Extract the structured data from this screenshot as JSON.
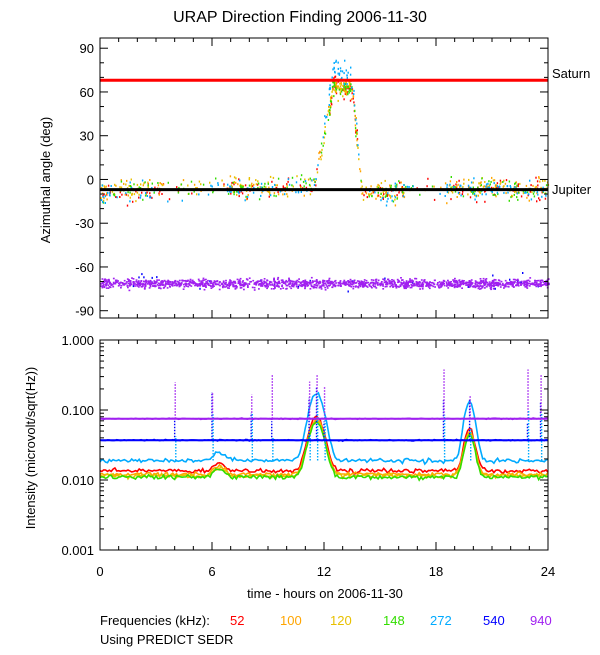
{
  "chart_data": [
    {
      "type": "scatter",
      "title": "URAP Direction Finding  2006-11-30",
      "ylabel": "Azimuthal angle (deg)",
      "xlim": [
        0,
        24
      ],
      "ylim": [
        -95,
        97
      ],
      "y_ticks": [
        "90",
        "60",
        "30",
        "0",
        "-30",
        "-60",
        "-90"
      ],
      "y_tick_values": [
        90,
        60,
        30,
        0,
        -30,
        -60,
        -90
      ],
      "reference_lines": [
        {
          "label": "Saturn",
          "value": 68,
          "color": "#ff0000"
        },
        {
          "label": "Jupiter",
          "value": -7,
          "color": "#000000"
        }
      ],
      "series": [
        {
          "name": "52",
          "color": "#ff0000",
          "profile": [
            [
              0,
              -10
            ],
            [
              3,
              -8
            ],
            [
              7,
              -6
            ],
            [
              10,
              -6
            ],
            [
              11.5,
              -2
            ],
            [
              12.5,
              66
            ],
            [
              13.5,
              60
            ],
            [
              14,
              -8
            ],
            [
              18,
              -6
            ],
            [
              24,
              -6
            ]
          ]
        },
        {
          "name": "100",
          "color": "#ffa500",
          "profile": [
            [
              0,
              -8
            ],
            [
              3,
              -6
            ],
            [
              7,
              -4
            ],
            [
              10,
              -5
            ],
            [
              11.5,
              -2
            ],
            [
              12.5,
              65
            ],
            [
              13.5,
              62
            ],
            [
              14,
              -8
            ],
            [
              18,
              -6
            ],
            [
              24,
              -5
            ]
          ]
        },
        {
          "name": "120",
          "color": "#e8c000",
          "profile": [
            [
              0,
              -8
            ],
            [
              3,
              -6
            ],
            [
              7,
              -4
            ],
            [
              10,
              -5
            ],
            [
              11.5,
              -2
            ],
            [
              12.5,
              65
            ],
            [
              13.5,
              62
            ],
            [
              14,
              -8
            ],
            [
              18,
              -6
            ],
            [
              24,
              -5
            ]
          ]
        },
        {
          "name": "148",
          "color": "#33dd00",
          "profile": [
            [
              0,
              -8
            ],
            [
              3,
              -6
            ],
            [
              7,
              -5
            ],
            [
              10,
              -5
            ],
            [
              11.5,
              -2
            ],
            [
              12.5,
              64
            ],
            [
              13.5,
              62
            ],
            [
              14,
              -8
            ],
            [
              18,
              -6
            ],
            [
              24,
              -6
            ]
          ]
        },
        {
          "name": "272",
          "color": "#00aaff",
          "profile": [
            [
              0,
              -10
            ],
            [
              6,
              -8
            ],
            [
              11.5,
              -4
            ],
            [
              12.5,
              78
            ],
            [
              13.5,
              70
            ],
            [
              14,
              -6
            ],
            [
              15,
              -12
            ],
            [
              16,
              -6
            ],
            [
              24,
              -6
            ]
          ]
        },
        {
          "name": "540",
          "color": "#0000ff",
          "profile": [
            [
              0,
              -70
            ],
            [
              12,
              -70
            ],
            [
              12.5,
              -80
            ],
            [
              13,
              -70
            ],
            [
              24,
              -70
            ]
          ]
        },
        {
          "name": "940",
          "color": "#a020f0",
          "profile": [
            [
              0,
              -71
            ],
            [
              6,
              -71
            ],
            [
              12,
              -71
            ],
            [
              18,
              -71
            ],
            [
              24,
              -71
            ]
          ]
        }
      ]
    },
    {
      "type": "line",
      "ylabel": "Intensity (microvolt/sqrt(Hz))",
      "xlabel": "time - hours on 2006-11-30",
      "xlim": [
        0,
        24
      ],
      "x_ticks": [
        "0",
        "6",
        "12",
        "18",
        "24"
      ],
      "x_tick_values": [
        0,
        6,
        12,
        18,
        24
      ],
      "ylim": [
        0.001,
        1.0
      ],
      "yscale": "log",
      "y_ticks": [
        "1.000",
        "0.100",
        "0.010",
        "0.001"
      ],
      "y_tick_values": [
        1.0,
        0.1,
        0.01,
        0.001
      ],
      "reference_lines": [
        {
          "value": 0.075,
          "color": "#a020f0"
        },
        {
          "value": 0.037,
          "color": "#0000ff"
        }
      ],
      "bursts": [
        4.0,
        6.0,
        8.1,
        9.2,
        11.2,
        11.6,
        12.0,
        18.4,
        19.8,
        22.9,
        23.6
      ],
      "series": [
        {
          "name": "52",
          "color": "#ff0000",
          "baseline": 0.0135
        },
        {
          "name": "100",
          "color": "#ffa500",
          "baseline": 0.012
        },
        {
          "name": "120",
          "color": "#e8c000",
          "baseline": 0.0115
        },
        {
          "name": "148",
          "color": "#33dd00",
          "baseline": 0.011
        },
        {
          "name": "272",
          "color": "#00aaff",
          "baseline": 0.019
        },
        {
          "name": "540",
          "color": "#0000ff",
          "baseline": 0.037
        },
        {
          "name": "940",
          "color": "#a020f0",
          "baseline": 0.075
        }
      ]
    }
  ],
  "legend": {
    "label": "Frequencies (kHz):",
    "items": [
      {
        "text": "52",
        "color": "#ff0000"
      },
      {
        "text": "100",
        "color": "#ffa500"
      },
      {
        "text": "120",
        "color": "#e8c000"
      },
      {
        "text": "148",
        "color": "#33dd00"
      },
      {
        "text": "272",
        "color": "#00aaff"
      },
      {
        "text": "540",
        "color": "#0000ff"
      },
      {
        "text": "940",
        "color": "#a020f0"
      }
    ]
  },
  "footnote": "Using PREDICT SEDR"
}
